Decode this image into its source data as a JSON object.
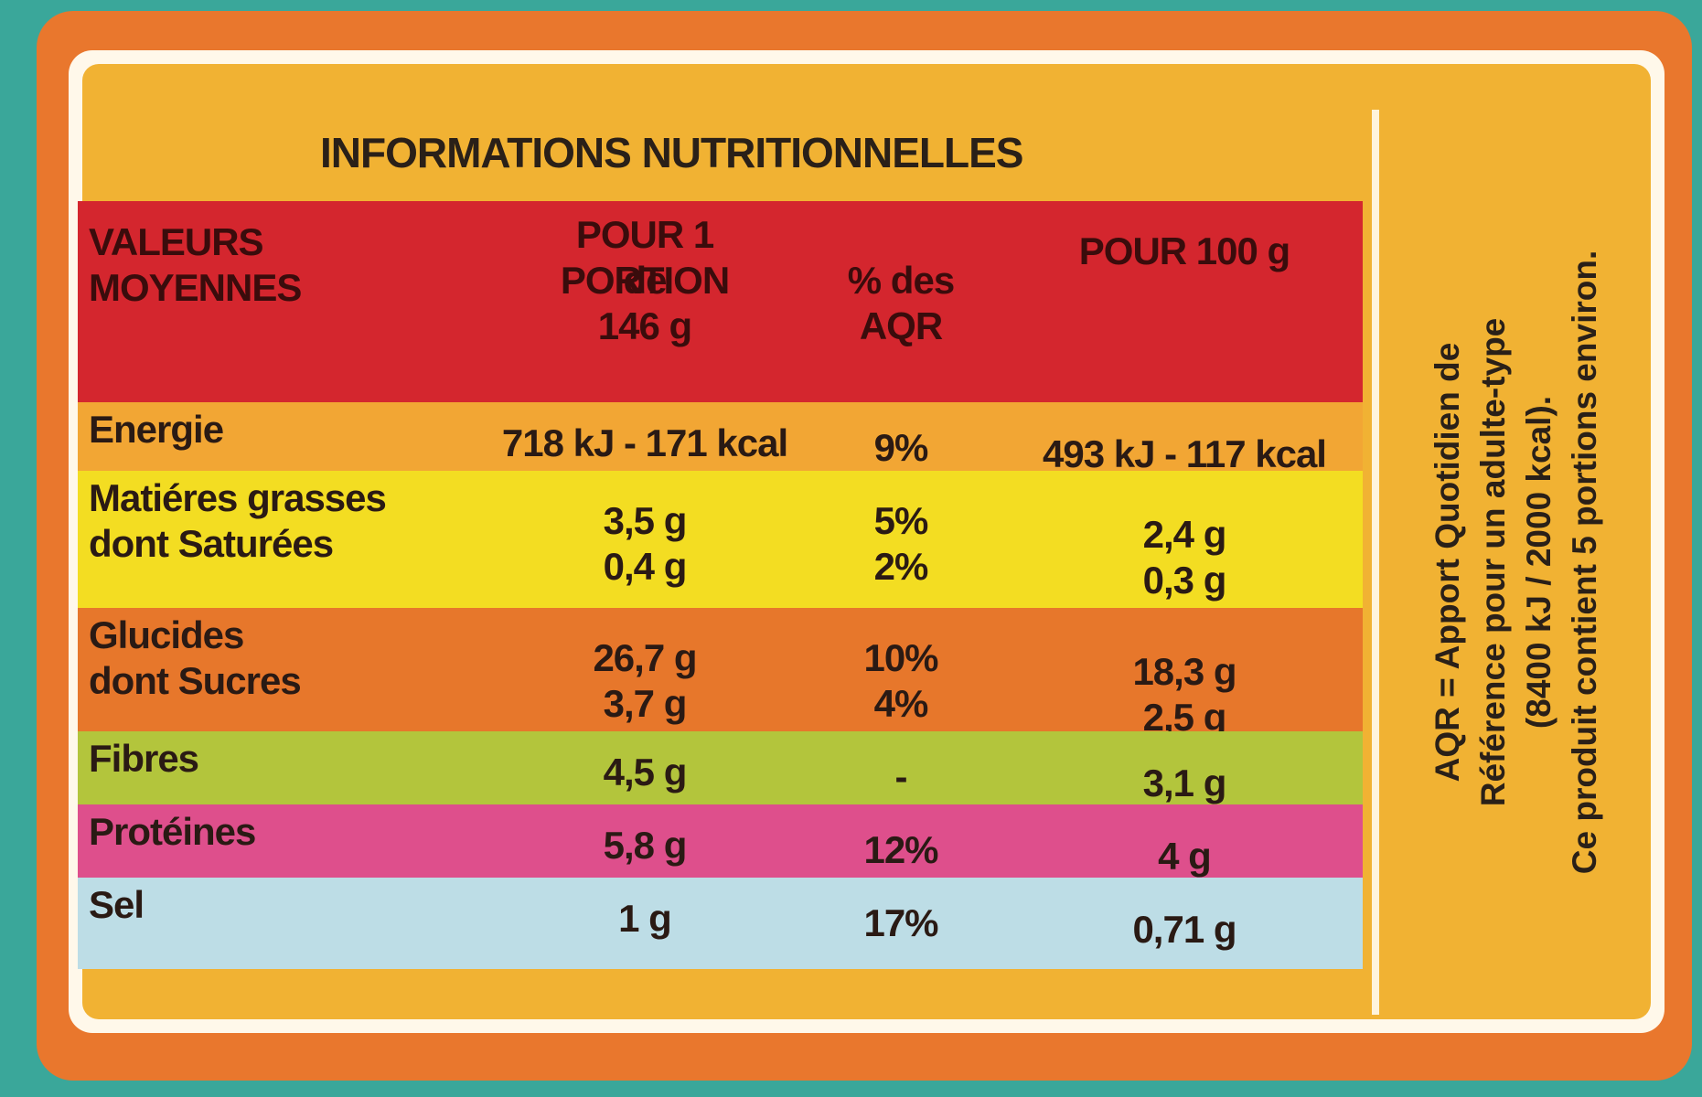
{
  "title": "INFORMATIONS NUTRITIONNELLES",
  "table": {
    "header": {
      "label": [
        "VALEURS",
        "MOYENNES"
      ],
      "portion": [
        "POUR 1 PORTION",
        "de",
        "146 g"
      ],
      "percent": [
        "% des",
        "AQR"
      ],
      "per100": [
        "POUR 100 g"
      ]
    },
    "rows": [
      {
        "label": [
          "Energie"
        ],
        "portion": [
          "718 kJ - 171 kcal"
        ],
        "percent": [
          "9%"
        ],
        "per100": [
          "493 kJ - 117 kcal"
        ],
        "color": "#f2a634"
      },
      {
        "label": [
          "Matiéres grasses",
          "dont Saturées"
        ],
        "portion": [
          "3,5 g",
          "0,4 g"
        ],
        "percent": [
          "5%",
          "2%"
        ],
        "per100": [
          "2,4 g",
          "0,3 g"
        ],
        "color": "#f3dd22"
      },
      {
        "label": [
          "Glucides",
          "dont Sucres"
        ],
        "portion": [
          "26,7 g",
          "3,7 g"
        ],
        "percent": [
          "10%",
          "4%"
        ],
        "per100": [
          "18,3 g",
          "2,5 g"
        ],
        "color": "#e7772b"
      },
      {
        "label": [
          "Fibres"
        ],
        "portion": [
          "4,5 g"
        ],
        "percent": [
          "-"
        ],
        "per100": [
          "3,1 g"
        ],
        "color": "#b3c53c"
      },
      {
        "label": [
          "Protéines"
        ],
        "portion": [
          "5,8 g"
        ],
        "percent": [
          "12%"
        ],
        "per100": [
          "4 g"
        ],
        "color": "#de4f8c"
      },
      {
        "label": [
          "Sel"
        ],
        "portion": [
          "1 g"
        ],
        "percent": [
          "17%"
        ],
        "per100": [
          "0,71 g"
        ],
        "color": "#bddde6"
      }
    ]
  },
  "note": [
    "AQR = Apport Quotidien de",
    "Référence pour un adulte-type",
    "(8400 kJ / 2000 kcal).",
    "Ce produit contient 5 portions environ."
  ]
}
